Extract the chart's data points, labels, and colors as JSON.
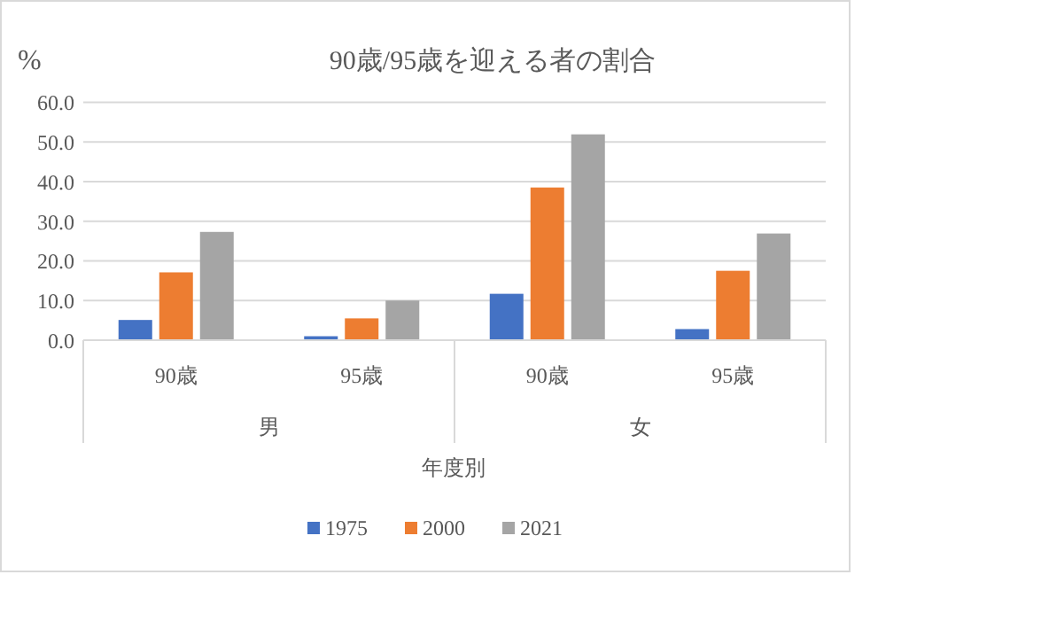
{
  "chart_data": {
    "type": "bar",
    "title": "90歳/95歳を迎える者の割合",
    "ylabel": "%",
    "xlabel": "年度別",
    "categories": [
      "90歳",
      "95歳",
      "90歳",
      "95歳"
    ],
    "annotations": [
      "男",
      "女"
    ],
    "series": [
      {
        "name": "1975",
        "color": "#4472c4",
        "values": [
          5.1,
          1.0,
          11.7,
          2.8
        ]
      },
      {
        "name": "2000",
        "color": "#ed7d31",
        "values": [
          17.1,
          5.5,
          38.5,
          17.5
        ]
      },
      {
        "name": "2021",
        "color": "#a5a5a5",
        "values": [
          27.3,
          10.0,
          51.9,
          26.9
        ]
      }
    ],
    "ylim": [
      0,
      60
    ],
    "yticks": [
      {
        "value": 0,
        "label": "0.0"
      },
      {
        "value": 10,
        "label": "10.0"
      },
      {
        "value": 20,
        "label": "20.0"
      },
      {
        "value": 30,
        "label": "30.0"
      },
      {
        "value": 40,
        "label": "40.0"
      },
      {
        "value": 50,
        "label": "50.0"
      },
      {
        "value": 60,
        "label": "60.0"
      }
    ],
    "grid": "y",
    "legend": "bottom"
  }
}
